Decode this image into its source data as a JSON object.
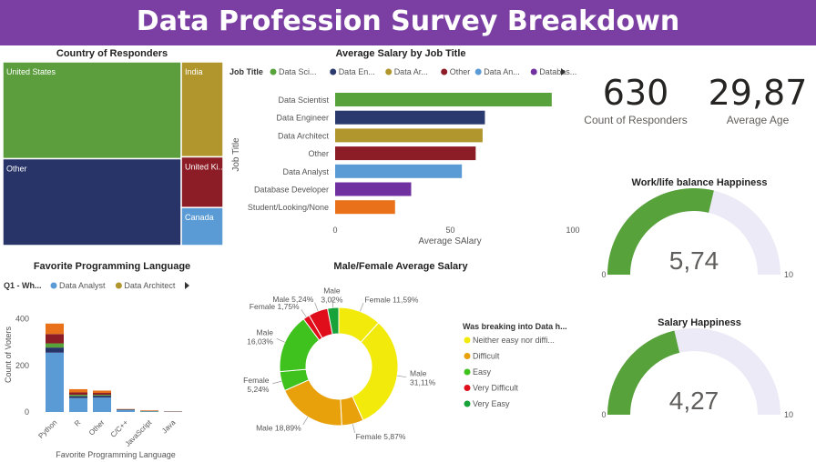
{
  "header": {
    "title": "Data Profession Survey Breakdown"
  },
  "panels": {
    "country": {
      "title": "Country of Responders"
    },
    "salary_job": {
      "title": "Average Salary by Job Title"
    },
    "language": {
      "title": "Favorite Programming Language"
    },
    "gender": {
      "title": "Male/Female Average Salary"
    },
    "worklife": {
      "title": "Work/life balance Happiness"
    },
    "salary_happy": {
      "title": "Salary Happiness"
    }
  },
  "kpis": {
    "count": {
      "value": "630",
      "label": "Count of Responders"
    },
    "age": {
      "value": "29,87",
      "label": "Average Age"
    }
  },
  "chart_data": [
    {
      "id": "country",
      "type": "treemap",
      "title": "Country of Responders",
      "items": [
        {
          "label": "United States",
          "value": 261,
          "color": "#5c9e3e"
        },
        {
          "label": "Other",
          "value": 234,
          "color": "#283468"
        },
        {
          "label": "India",
          "value": 60,
          "color": "#b0962d"
        },
        {
          "label": "United Ki...",
          "value": 32,
          "color": "#8c1c26"
        },
        {
          "label": "Canada",
          "value": 24,
          "color": "#5b9bd5"
        }
      ]
    },
    {
      "id": "salary_job",
      "type": "bar",
      "title": "Average Salary by Job Title",
      "xlabel": "Average SAlary",
      "ylabel": "Job Title",
      "xlim": [
        0,
        100
      ],
      "xticks": [
        "0",
        "50",
        "100"
      ],
      "legend": {
        "title": "Job Title",
        "items": [
          {
            "label": "Data Sci...",
            "color": "#58a23c"
          },
          {
            "label": "Data En...",
            "color": "#2b3a6e"
          },
          {
            "label": "Data Ar...",
            "color": "#b0962d"
          },
          {
            "label": "Other",
            "color": "#8c1c26"
          },
          {
            "label": "Data An...",
            "color": "#5b9bd5"
          },
          {
            "label": "Databas...",
            "color": "#7030a0"
          }
        ]
      },
      "categories": [
        "Data Scientist",
        "Data Engineer",
        "Data Architect",
        "Other",
        "Data Analyst",
        "Database Developer",
        "Student/Looking/None"
      ],
      "values": [
        94,
        65,
        64,
        61,
        55,
        33,
        26
      ],
      "colors": [
        "#58a23c",
        "#2b3a6e",
        "#b0962d",
        "#8c1c26",
        "#5b9bd5",
        "#7030a0",
        "#e8711a"
      ]
    },
    {
      "id": "language",
      "type": "bar",
      "stacked": true,
      "title": "Favorite Programming Language",
      "xlabel": "Favorite Programming Language",
      "ylabel": "Count of Voters",
      "ylim": [
        0,
        430
      ],
      "yticks": [
        "0",
        "200",
        "400"
      ],
      "legend": {
        "title": "Q1 - Wh...",
        "items": [
          {
            "label": "Data Analyst",
            "color": "#5b9bd5"
          },
          {
            "label": "Data Architect",
            "color": "#b0962d"
          }
        ]
      },
      "categories": [
        "Python",
        "R",
        "Other",
        "C/C++",
        "JavaScript",
        "Java"
      ],
      "series": [
        {
          "name": "Data Analyst",
          "color": "#5b9bd5",
          "values": [
            255,
            60,
            62,
            8,
            2,
            1
          ]
        },
        {
          "color": "#283468",
          "values": [
            22,
            8,
            8,
            2,
            1,
            1
          ]
        },
        {
          "color": "#58a23c",
          "values": [
            18,
            6,
            4,
            1,
            1,
            0
          ]
        },
        {
          "color": "#8c1c26",
          "values": [
            40,
            10,
            8,
            1,
            1,
            0
          ]
        },
        {
          "color": "#e8711a",
          "values": [
            45,
            14,
            10,
            1,
            2,
            1
          ]
        }
      ]
    },
    {
      "id": "gender",
      "type": "pie",
      "donut": true,
      "title": "Male/Female Average Salary",
      "legend": {
        "title": "Was breaking into Data h...",
        "items": [
          {
            "label": "Neither easy nor diffi...",
            "color": "#f2ea0a"
          },
          {
            "label": "Difficult",
            "color": "#e8a00b"
          },
          {
            "label": "Easy",
            "color": "#3fc21e"
          },
          {
            "label": "Very Difficult",
            "color": "#e00d1a"
          },
          {
            "label": "Very Easy",
            "color": "#18a23a"
          }
        ]
      },
      "slices": [
        {
          "label": "Female 11,59%",
          "value": 11.59,
          "color": "#f2ea0a"
        },
        {
          "label": "Male\n31,11%",
          "value": 31.11,
          "color": "#f2ea0a"
        },
        {
          "label": "Female 5,87%",
          "value": 5.87,
          "color": "#e8a00b"
        },
        {
          "label": "Male 18,89%",
          "value": 18.89,
          "color": "#e8a00b"
        },
        {
          "label": "Female\n5,24%",
          "value": 5.24,
          "color": "#3fc21e"
        },
        {
          "label": "Male\n16,03%",
          "value": 16.03,
          "color": "#3fc21e"
        },
        {
          "label": "Female 1,75%",
          "value": 1.75,
          "color": "#e00d1a"
        },
        {
          "label": "Male 5,24%",
          "value": 5.24,
          "color": "#e00d1a"
        },
        {
          "label": "Male\n3,02%",
          "value": 3.02,
          "color": "#18a23a"
        }
      ]
    },
    {
      "id": "worklife",
      "type": "gauge",
      "title": "Work/life balance Happiness",
      "value": 5.74,
      "value_label": "5,74",
      "min": 0,
      "max": 10,
      "min_label": "0",
      "max_label": "10",
      "fill_color": "#58a23c",
      "track_color": "#ebeaf6"
    },
    {
      "id": "salary_happy",
      "type": "gauge",
      "title": "Salary Happiness",
      "value": 4.27,
      "value_label": "4,27",
      "min": 0,
      "max": 10,
      "min_label": "0",
      "max_label": "10",
      "fill_color": "#58a23c",
      "track_color": "#ebeaf6"
    }
  ]
}
